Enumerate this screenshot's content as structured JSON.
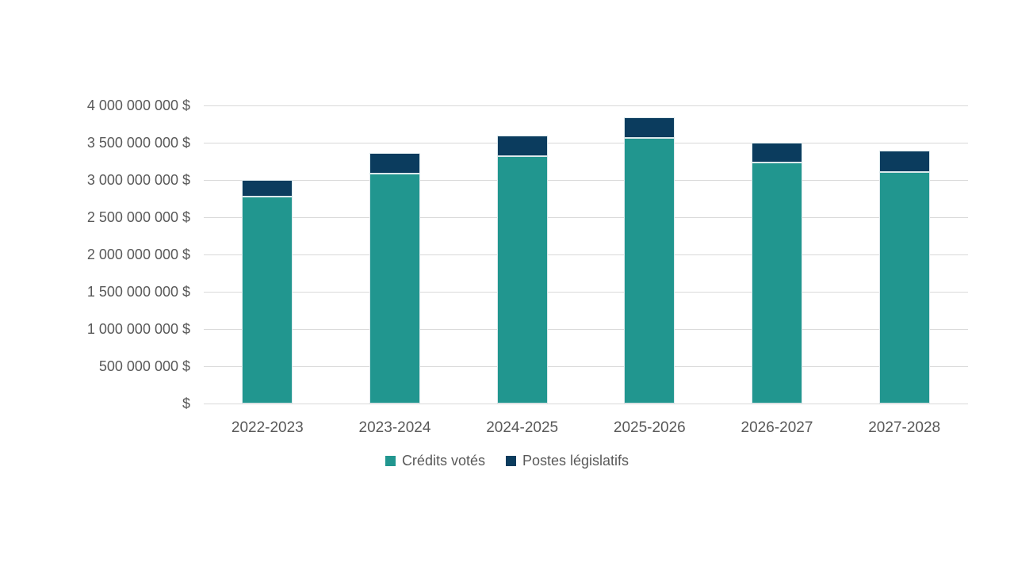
{
  "chart_data": {
    "type": "bar",
    "stacked": true,
    "title": "",
    "categories": [
      "2022-2023",
      "2023-2024",
      "2024-2025",
      "2025-2026",
      "2026-2027",
      "2027-2028"
    ],
    "series": [
      {
        "name": "Crédits votés",
        "color": "#21968F",
        "values": [
          2775000000,
          3090000000,
          3320000000,
          3560000000,
          3230000000,
          3110000000
        ]
      },
      {
        "name": "Postes législatifs",
        "color": "#0B3C5E",
        "values": [
          230000000,
          270000000,
          280000000,
          285000000,
          275000000,
          280000000
        ]
      }
    ],
    "y_axis": {
      "min": 0,
      "max": 4000000000,
      "tick_labels": [
        "4 000 000 000 $",
        "3 500 000 000 $",
        "3 000 000 000 $",
        "2 500 000 000 $",
        "2 000 000 000 $",
        "1 500 000 000 $",
        "1 000 000 000 $",
        "500 000 000 $",
        "$"
      ]
    },
    "x_axis": {
      "tick_labels": [
        "2022-2023",
        "2023-2024",
        "2024-2025",
        "2025-2026",
        "2026-2027",
        "2027-2028"
      ]
    },
    "grid": true,
    "legend_position": "bottom",
    "colors": {
      "background": "#FFFFFF",
      "gridline": "#D9D9D9",
      "axis_text": "#595959",
      "bar_border": "#DCE9EC"
    }
  }
}
